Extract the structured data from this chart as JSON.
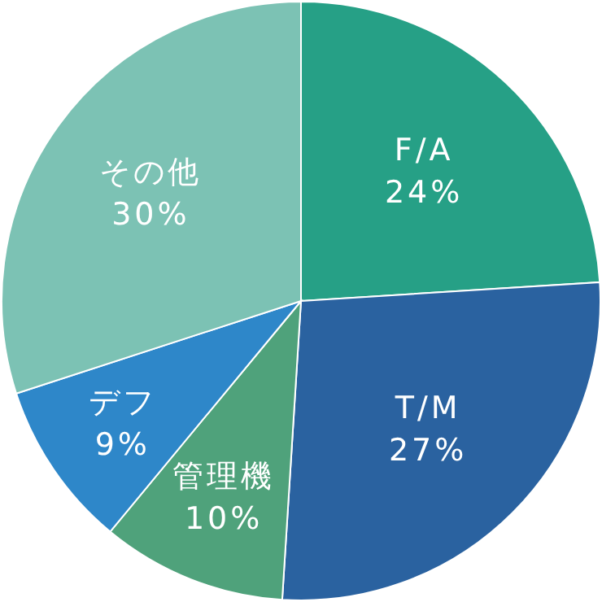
{
  "chart_data": {
    "type": "pie",
    "categories": [
      "F/A",
      "T/M",
      "管理機",
      "デフ",
      "その他"
    ],
    "values": [
      24,
      27,
      10,
      9,
      30
    ],
    "value_labels": [
      "24%",
      "27%",
      "10%",
      "9%",
      "30%"
    ],
    "colors": [
      "#26a086",
      "#2a62a0",
      "#4fa27b",
      "#2e87c9",
      "#7cc2b4"
    ]
  }
}
